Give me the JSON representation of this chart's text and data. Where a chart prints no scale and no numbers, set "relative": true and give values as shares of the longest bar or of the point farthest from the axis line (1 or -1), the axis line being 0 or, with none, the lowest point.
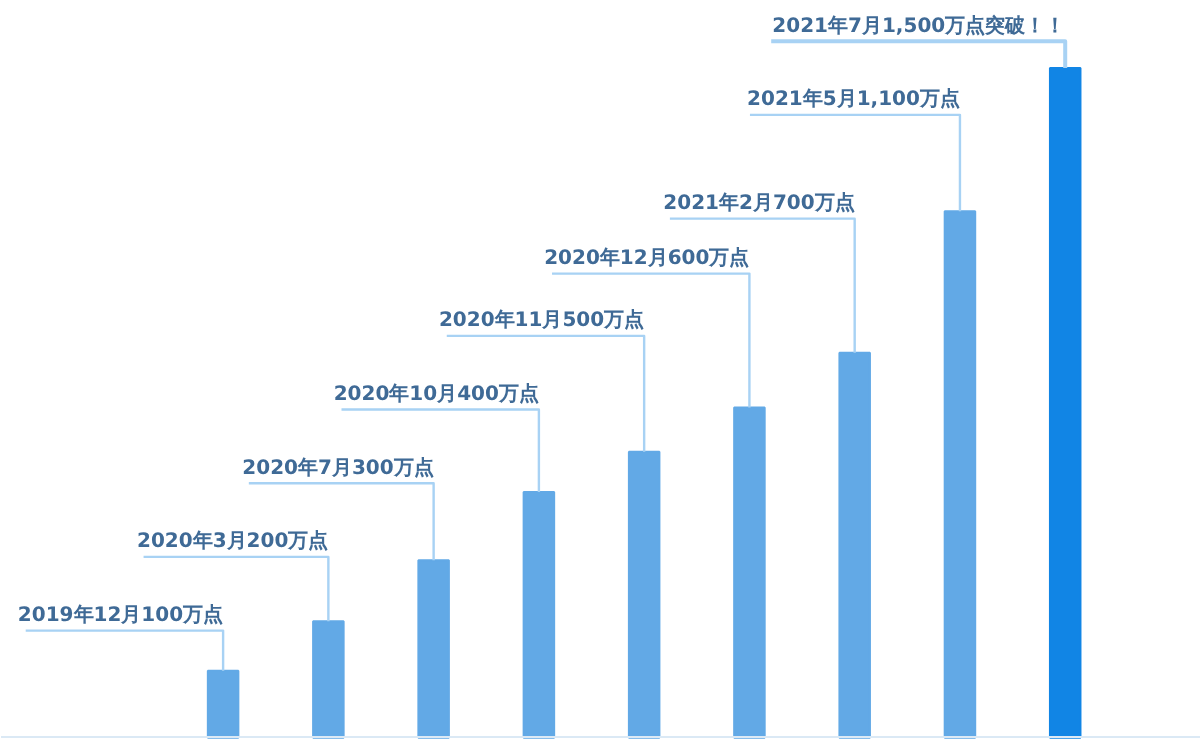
{
  "chart_data": {
    "type": "bar",
    "relative": true,
    "categories": [
      null,
      null,
      null,
      null,
      null,
      null,
      null,
      null,
      null
    ],
    "values": [
      0.1,
      0.174,
      0.265,
      0.367,
      0.427,
      0.493,
      0.575,
      0.786,
      1
    ],
    "colors": [
      "#62a9e6",
      "#62a9e6",
      "#62a9e6",
      "#62a9e6",
      "#62a9e6",
      "#62a9e6",
      "#62a9e6",
      "#62a9e6",
      "#1185e5"
    ],
    "annotations": [
      "2019年12月100万点",
      "2020年3月200万点",
      "2020年7月300万点",
      "2020年10月400万点",
      "2020年11月500万点",
      "2020年12月600万点",
      "2021年2月700万点",
      "2021年5月1,100万点",
      "2021年7月1,500万点突破！！"
    ],
    "grid": false
  }
}
